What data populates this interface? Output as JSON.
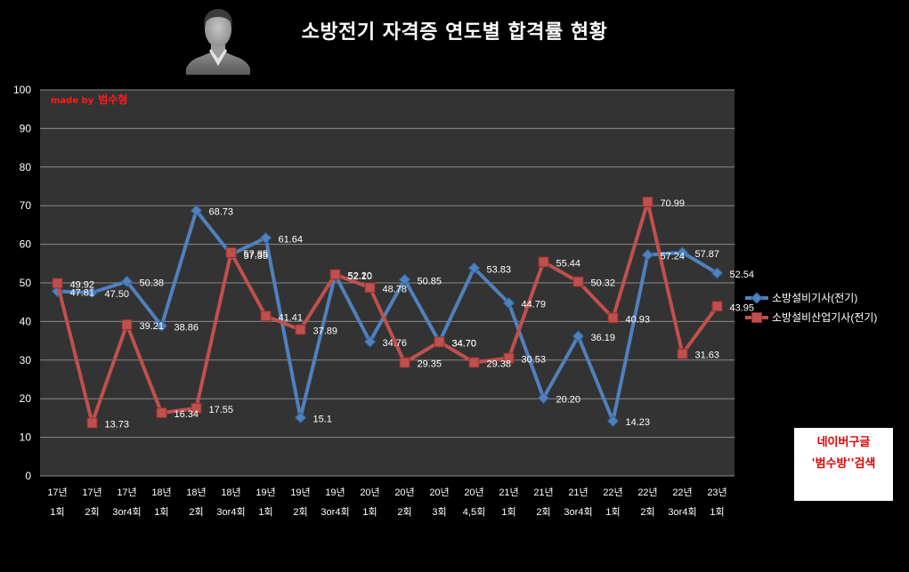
{
  "header": {
    "avatar_icon": "person-silhouette-icon"
  },
  "watermark": {
    "prefix": "made by",
    "name": "범수형"
  },
  "search_box": {
    "line1": "네이버구글",
    "line2": "'범수방''검색"
  },
  "colors": {
    "background": "#000000",
    "plot_area": "#333333",
    "gridline": "#8a8a8a",
    "text": "#ffffff",
    "accent_red": "#ff1a1a"
  },
  "chart_data": {
    "type": "line",
    "title": "소방전기 자격증 연도별 합격률 현황",
    "xlabel": "",
    "ylabel": "",
    "categories": [
      [
        "17년",
        "1회"
      ],
      [
        "17년",
        "2회"
      ],
      [
        "17년",
        "3or4회"
      ],
      [
        "18년",
        "1회"
      ],
      [
        "18년",
        "2회"
      ],
      [
        "18년",
        "3or4회"
      ],
      [
        "19년",
        "1회"
      ],
      [
        "19년",
        "2회"
      ],
      [
        "19년",
        "3or4회"
      ],
      [
        "20년",
        "1회"
      ],
      [
        "20년",
        "2회"
      ],
      [
        "20년",
        "3회"
      ],
      [
        "20년",
        "4,5회"
      ],
      [
        "21년",
        "1회"
      ],
      [
        "21년",
        "2회"
      ],
      [
        "21년",
        "3or4회"
      ],
      [
        "22년",
        "1회"
      ],
      [
        "22년",
        "2회"
      ],
      [
        "22년",
        "3or4회"
      ],
      [
        "23년",
        "1회"
      ]
    ],
    "ylim": [
      0,
      100
    ],
    "yticks": [
      0,
      10,
      20,
      30,
      40,
      50,
      60,
      70,
      80,
      90,
      100
    ],
    "grid": true,
    "legend": "right",
    "series": [
      {
        "name": "소방설비기사(전기)",
        "color": "#4f81bd",
        "marker": "diamond",
        "values": [
          47.81,
          47.5,
          50.38,
          38.86,
          68.73,
          57.35,
          61.64,
          15.1,
          52.1,
          34.76,
          50.85,
          34.7,
          53.83,
          44.79,
          20.2,
          36.19,
          14.23,
          57.24,
          57.87,
          52.54
        ],
        "labels": [
          "47.81",
          "47.50",
          "50.38",
          "38.86",
          "68.73",
          "57.35",
          "61.64",
          "15.1",
          "52.10",
          "34.76",
          "50.85",
          "34.70",
          "53.83",
          "44.79",
          "20.20",
          "36.19",
          "14.23",
          "57.24",
          "57.87",
          "52.54"
        ]
      },
      {
        "name": "소방설비산업기사(전기)",
        "color": "#c0504d",
        "marker": "square",
        "values": [
          49.92,
          13.73,
          39.21,
          16.34,
          17.55,
          57.85,
          41.41,
          37.89,
          52.2,
          48.78,
          29.35,
          34.7,
          29.38,
          30.53,
          55.44,
          50.32,
          40.93,
          70.99,
          31.63,
          43.95
        ],
        "labels": [
          "49.92",
          "13.73",
          "39.21",
          "16.34",
          "17.55",
          "57.85",
          "41.41",
          "37.89",
          "52.20",
          "48.78",
          "29.35",
          "34.70",
          "29.38",
          "30.53",
          "55.44",
          "50.32",
          "40.93",
          "70.99",
          "31.63",
          "43.95"
        ]
      }
    ]
  }
}
